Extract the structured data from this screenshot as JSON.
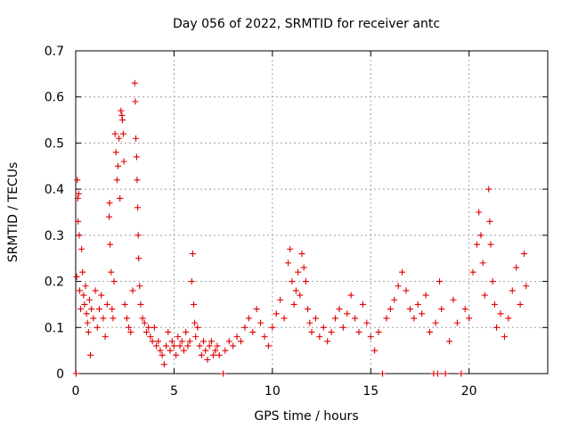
{
  "chart_data": {
    "type": "scatter",
    "title": "Day 056 of 2022, SRMTID for receiver antc",
    "xlabel": "GPS time / hours",
    "ylabel": "SRMTID / TECUs",
    "xlim": [
      0,
      24
    ],
    "ylim": [
      0,
      0.7
    ],
    "x_ticks": [
      0,
      5,
      10,
      15,
      20
    ],
    "y_ticks": [
      0,
      0.1,
      0.2,
      0.3,
      0.4,
      0.5,
      0.6,
      0.7
    ],
    "x_tick_labels": [
      "0",
      "5",
      "10",
      "15",
      "20"
    ],
    "y_tick_labels": [
      "0",
      "0.1",
      "0.2",
      "0.3",
      "0.4",
      "0.5",
      "0.6",
      "0.7"
    ],
    "grid": true,
    "marker": "+",
    "marker_color": "#e00000",
    "series": [
      {
        "name": "SRMTID",
        "points": [
          [
            0.02,
            0.0
          ],
          [
            0.05,
            0.21
          ],
          [
            0.08,
            0.42
          ],
          [
            0.1,
            0.38
          ],
          [
            0.12,
            0.33
          ],
          [
            0.15,
            0.39
          ],
          [
            0.18,
            0.3
          ],
          [
            0.2,
            0.18
          ],
          [
            0.25,
            0.14
          ],
          [
            0.3,
            0.27
          ],
          [
            0.35,
            0.22
          ],
          [
            0.4,
            0.17
          ],
          [
            0.45,
            0.15
          ],
          [
            0.5,
            0.19
          ],
          [
            0.55,
            0.13
          ],
          [
            0.6,
            0.11
          ],
          [
            0.65,
            0.09
          ],
          [
            0.7,
            0.16
          ],
          [
            0.75,
            0.04
          ],
          [
            0.8,
            0.14
          ],
          [
            0.9,
            0.12
          ],
          [
            1.0,
            0.18
          ],
          [
            1.1,
            0.1
          ],
          [
            1.2,
            0.14
          ],
          [
            1.3,
            0.17
          ],
          [
            1.4,
            0.12
          ],
          [
            1.5,
            0.08
          ],
          [
            1.6,
            0.15
          ],
          [
            1.7,
            0.34
          ],
          [
            1.72,
            0.37
          ],
          [
            1.75,
            0.28
          ],
          [
            1.8,
            0.22
          ],
          [
            1.85,
            0.14
          ],
          [
            1.9,
            0.12
          ],
          [
            1.95,
            0.2
          ],
          [
            2.0,
            0.52
          ],
          [
            2.05,
            0.48
          ],
          [
            2.1,
            0.42
          ],
          [
            2.15,
            0.45
          ],
          [
            2.2,
            0.51
          ],
          [
            2.25,
            0.38
          ],
          [
            2.3,
            0.57
          ],
          [
            2.35,
            0.56
          ],
          [
            2.38,
            0.55
          ],
          [
            2.42,
            0.52
          ],
          [
            2.45,
            0.46
          ],
          [
            2.5,
            0.15
          ],
          [
            2.6,
            0.12
          ],
          [
            2.7,
            0.1
          ],
          [
            2.8,
            0.09
          ],
          [
            2.9,
            0.18
          ],
          [
            3.0,
            0.63
          ],
          [
            3.03,
            0.59
          ],
          [
            3.06,
            0.51
          ],
          [
            3.1,
            0.47
          ],
          [
            3.12,
            0.42
          ],
          [
            3.15,
            0.36
          ],
          [
            3.18,
            0.3
          ],
          [
            3.2,
            0.25
          ],
          [
            3.25,
            0.19
          ],
          [
            3.3,
            0.15
          ],
          [
            3.4,
            0.12
          ],
          [
            3.5,
            0.11
          ],
          [
            3.6,
            0.09
          ],
          [
            3.7,
            0.1
          ],
          [
            3.8,
            0.08
          ],
          [
            3.9,
            0.07
          ],
          [
            4.0,
            0.1
          ],
          [
            4.1,
            0.06
          ],
          [
            4.2,
            0.07
          ],
          [
            4.3,
            0.05
          ],
          [
            4.4,
            0.04
          ],
          [
            4.5,
            0.02
          ],
          [
            4.6,
            0.06
          ],
          [
            4.7,
            0.09
          ],
          [
            4.8,
            0.05
          ],
          [
            4.9,
            0.07
          ],
          [
            5.0,
            0.06
          ],
          [
            5.1,
            0.04
          ],
          [
            5.2,
            0.08
          ],
          [
            5.3,
            0.06
          ],
          [
            5.4,
            0.07
          ],
          [
            5.5,
            0.05
          ],
          [
            5.6,
            0.09
          ],
          [
            5.7,
            0.06
          ],
          [
            5.8,
            0.07
          ],
          [
            5.9,
            0.2
          ],
          [
            5.95,
            0.26
          ],
          [
            6.0,
            0.15
          ],
          [
            6.05,
            0.11
          ],
          [
            6.1,
            0.08
          ],
          [
            6.2,
            0.1
          ],
          [
            6.3,
            0.06
          ],
          [
            6.4,
            0.04
          ],
          [
            6.5,
            0.07
          ],
          [
            6.6,
            0.05
          ],
          [
            6.7,
            0.03
          ],
          [
            6.8,
            0.06
          ],
          [
            6.9,
            0.07
          ],
          [
            7.0,
            0.04
          ],
          [
            7.1,
            0.05
          ],
          [
            7.2,
            0.06
          ],
          [
            7.3,
            0.04
          ],
          [
            7.5,
            0.0
          ],
          [
            7.6,
            0.05
          ],
          [
            7.8,
            0.07
          ],
          [
            8.0,
            0.06
          ],
          [
            8.2,
            0.08
          ],
          [
            8.4,
            0.07
          ],
          [
            8.6,
            0.1
          ],
          [
            8.8,
            0.12
          ],
          [
            9.0,
            0.09
          ],
          [
            9.2,
            0.14
          ],
          [
            9.4,
            0.11
          ],
          [
            9.6,
            0.08
          ],
          [
            9.8,
            0.06
          ],
          [
            10.0,
            0.1
          ],
          [
            10.2,
            0.13
          ],
          [
            10.4,
            0.16
          ],
          [
            10.6,
            0.12
          ],
          [
            10.8,
            0.24
          ],
          [
            10.9,
            0.27
          ],
          [
            11.0,
            0.2
          ],
          [
            11.1,
            0.15
          ],
          [
            11.2,
            0.18
          ],
          [
            11.3,
            0.22
          ],
          [
            11.4,
            0.17
          ],
          [
            11.5,
            0.26
          ],
          [
            11.6,
            0.23
          ],
          [
            11.7,
            0.2
          ],
          [
            11.8,
            0.14
          ],
          [
            11.9,
            0.11
          ],
          [
            12.0,
            0.09
          ],
          [
            12.2,
            0.12
          ],
          [
            12.4,
            0.08
          ],
          [
            12.6,
            0.1
          ],
          [
            12.8,
            0.07
          ],
          [
            13.0,
            0.09
          ],
          [
            13.2,
            0.12
          ],
          [
            13.4,
            0.14
          ],
          [
            13.6,
            0.1
          ],
          [
            13.8,
            0.13
          ],
          [
            14.0,
            0.17
          ],
          [
            14.2,
            0.12
          ],
          [
            14.4,
            0.09
          ],
          [
            14.6,
            0.15
          ],
          [
            14.8,
            0.11
          ],
          [
            15.0,
            0.08
          ],
          [
            15.2,
            0.05
          ],
          [
            15.4,
            0.09
          ],
          [
            15.6,
            0.0
          ],
          [
            15.8,
            0.12
          ],
          [
            16.0,
            0.14
          ],
          [
            16.2,
            0.16
          ],
          [
            16.4,
            0.19
          ],
          [
            16.6,
            0.22
          ],
          [
            16.8,
            0.18
          ],
          [
            17.0,
            0.14
          ],
          [
            17.2,
            0.12
          ],
          [
            17.4,
            0.15
          ],
          [
            17.6,
            0.13
          ],
          [
            17.8,
            0.17
          ],
          [
            18.0,
            0.09
          ],
          [
            18.2,
            0.0
          ],
          [
            18.3,
            0.11
          ],
          [
            18.4,
            0.0
          ],
          [
            18.5,
            0.2
          ],
          [
            18.6,
            0.14
          ],
          [
            18.8,
            0.0
          ],
          [
            19.0,
            0.07
          ],
          [
            19.2,
            0.16
          ],
          [
            19.4,
            0.11
          ],
          [
            19.6,
            0.0
          ],
          [
            19.8,
            0.14
          ],
          [
            20.0,
            0.12
          ],
          [
            20.2,
            0.22
          ],
          [
            20.4,
            0.28
          ],
          [
            20.5,
            0.35
          ],
          [
            20.6,
            0.3
          ],
          [
            20.7,
            0.24
          ],
          [
            20.8,
            0.17
          ],
          [
            21.0,
            0.4
          ],
          [
            21.05,
            0.33
          ],
          [
            21.1,
            0.28
          ],
          [
            21.2,
            0.2
          ],
          [
            21.3,
            0.15
          ],
          [
            21.4,
            0.1
          ],
          [
            21.6,
            0.13
          ],
          [
            21.8,
            0.08
          ],
          [
            22.0,
            0.12
          ],
          [
            22.2,
            0.18
          ],
          [
            22.4,
            0.23
          ],
          [
            22.6,
            0.15
          ],
          [
            22.8,
            0.26
          ],
          [
            22.9,
            0.19
          ]
        ]
      }
    ]
  }
}
